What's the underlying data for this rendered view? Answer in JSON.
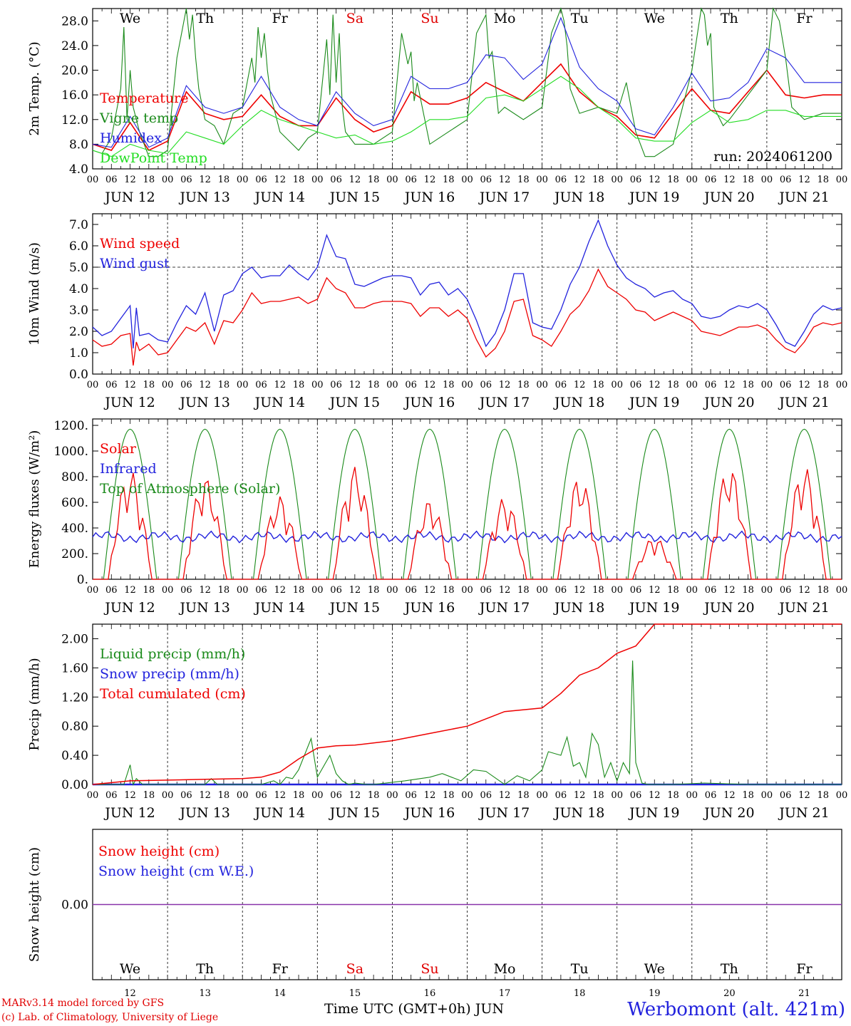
{
  "chart_data": [
    {
      "type": "line",
      "ylabel": "2m Temp. (°C)",
      "ylim": [
        4,
        30
      ],
      "yticks": [
        "4.0",
        "8.0",
        "12.0",
        "16.0",
        "20.0",
        "24.0",
        "28.0"
      ],
      "run_label": "run: 2024061200",
      "day_abbr": [
        "We",
        "Th",
        "Fr",
        "Sa",
        "Su",
        "Mo",
        "Tu",
        "We",
        "Th",
        "Fr"
      ],
      "weekend_color": "#e00000",
      "x_hours_label": [
        "00",
        "06",
        "12",
        "18"
      ],
      "x_days": [
        "JUN 12",
        "JUN 13",
        "JUN 14",
        "JUN 15",
        "JUN 16",
        "JUN 17",
        "JUN 18",
        "JUN 19",
        "JUN 20",
        "JUN 21"
      ],
      "series": [
        {
          "name": "Temperature",
          "color": "#ee0000",
          "x": [
            0,
            6,
            12,
            18,
            24,
            30,
            36,
            42,
            48,
            54,
            60,
            66,
            72,
            78,
            84,
            90,
            96,
            102,
            108,
            114,
            120,
            126,
            132,
            138,
            144,
            150,
            156,
            162,
            168,
            174,
            180,
            186,
            192,
            198,
            204,
            210,
            216,
            222,
            228,
            234,
            240
          ],
          "y": [
            8,
            7,
            11.5,
            7,
            8.5,
            16.5,
            13,
            12,
            12.5,
            16,
            12.5,
            11,
            11,
            15.5,
            12,
            10,
            11,
            16.5,
            14.5,
            14.5,
            15.5,
            18,
            16.5,
            15,
            18,
            21,
            16.5,
            14,
            12.5,
            9.5,
            9,
            13,
            17,
            13.5,
            13,
            16.5,
            20,
            16,
            15.5,
            16,
            16
          ]
        },
        {
          "name": "Vigne temp",
          "color": "#1a8a1a",
          "x": [
            0,
            3,
            6,
            9,
            10,
            11,
            12,
            13,
            14,
            15,
            18,
            21,
            24,
            27,
            30,
            31,
            32,
            33,
            34,
            36,
            39,
            42,
            45,
            48,
            51,
            52,
            53,
            54,
            55,
            56,
            57,
            60,
            66,
            69,
            72,
            75,
            76,
            77,
            78,
            79,
            80,
            81,
            84,
            90,
            96,
            99,
            101,
            102,
            103,
            104,
            108,
            114,
            120,
            123,
            126,
            127,
            128,
            129,
            130,
            132,
            138,
            144,
            147,
            150,
            151,
            152,
            153,
            156,
            162,
            168,
            171,
            174,
            177,
            180,
            186,
            192,
            195,
            196,
            197,
            198,
            199,
            202,
            204,
            210,
            216,
            218,
            220,
            222,
            224,
            228,
            234,
            240
          ],
          "y": [
            7,
            6.5,
            9,
            17,
            27,
            12,
            20,
            14,
            12,
            10,
            6,
            6,
            7,
            22,
            30,
            25,
            29,
            22,
            17,
            12,
            11,
            8,
            13,
            14,
            22,
            18,
            27,
            22,
            26,
            20,
            16,
            10,
            7,
            9,
            10,
            25,
            16,
            29,
            18,
            26,
            14,
            10,
            8,
            8,
            10,
            26,
            21,
            23,
            15,
            18,
            8,
            10,
            12,
            26,
            29,
            22,
            23,
            18,
            13,
            14,
            12,
            14,
            26,
            30,
            28,
            24,
            17,
            13,
            14,
            13,
            18,
            10,
            6,
            6,
            8,
            20,
            30,
            29,
            24,
            26,
            14,
            11,
            12,
            16,
            20,
            30,
            28,
            22,
            14,
            12,
            13,
            13
          ]
        },
        {
          "name": "Humidex",
          "color": "#2222dd",
          "x": [
            0,
            6,
            12,
            18,
            24,
            30,
            36,
            42,
            48,
            54,
            60,
            66,
            72,
            78,
            84,
            90,
            96,
            102,
            108,
            114,
            120,
            126,
            132,
            138,
            144,
            150,
            156,
            162,
            168,
            174,
            180,
            186,
            192,
            198,
            204,
            210,
            216,
            222,
            228,
            234,
            240
          ],
          "y": [
            8,
            7.5,
            12.5,
            7.5,
            9,
            17.5,
            14,
            13,
            14,
            19,
            14,
            12,
            11,
            16.5,
            13,
            11,
            12,
            19,
            17,
            17,
            18,
            22.5,
            22,
            18.5,
            21,
            28.5,
            20.5,
            17,
            15,
            10.5,
            9.5,
            14,
            19.5,
            15,
            15.5,
            18,
            23.5,
            22,
            18,
            18,
            18
          ]
        },
        {
          "name": "DewPoint Temp",
          "color": "#22dd22",
          "x": [
            0,
            6,
            12,
            18,
            24,
            30,
            36,
            42,
            48,
            54,
            60,
            66,
            72,
            78,
            84,
            90,
            96,
            102,
            108,
            114,
            120,
            126,
            132,
            138,
            144,
            150,
            156,
            162,
            168,
            174,
            180,
            186,
            192,
            198,
            204,
            210,
            216,
            222,
            228,
            234,
            240
          ],
          "y": [
            7,
            6,
            8,
            7,
            6.5,
            10,
            9,
            8,
            11,
            13.5,
            12,
            11,
            10,
            9,
            9.5,
            8,
            8.5,
            10,
            12,
            12,
            12.5,
            15.5,
            16,
            15,
            17,
            19,
            17,
            14,
            12,
            9,
            8.5,
            8.5,
            11.5,
            13.5,
            11.5,
            12,
            13.5,
            13.5,
            12.5,
            12.5,
            12.5
          ]
        }
      ]
    },
    {
      "type": "line",
      "ylabel": "10m Wind (m/s)",
      "ylim": [
        0,
        7.5
      ],
      "yticks": [
        "0.0",
        "1.0",
        "2.0",
        "3.0",
        "4.0",
        "5.0",
        "6.0",
        "7.0"
      ],
      "reference_line": 5.0,
      "series": [
        {
          "name": "Wind speed",
          "color": "#ee0000",
          "x": [
            0,
            3,
            6,
            9,
            12,
            13,
            14,
            15,
            18,
            21,
            24,
            27,
            30,
            33,
            36,
            39,
            42,
            45,
            48,
            51,
            54,
            57,
            60,
            63,
            66,
            69,
            72,
            75,
            78,
            81,
            84,
            87,
            90,
            93,
            96,
            99,
            102,
            105,
            108,
            111,
            114,
            117,
            120,
            123,
            126,
            129,
            132,
            135,
            138,
            141,
            144,
            147,
            150,
            153,
            156,
            159,
            162,
            165,
            168,
            171,
            174,
            177,
            180,
            183,
            186,
            189,
            192,
            195,
            198,
            201,
            204,
            207,
            210,
            213,
            216,
            219,
            222,
            225,
            228,
            231,
            234,
            237,
            240
          ],
          "y": [
            1.6,
            1.3,
            1.4,
            1.8,
            1.9,
            0.4,
            1.5,
            1.1,
            1.4,
            0.9,
            1.0,
            1.6,
            2.2,
            2.0,
            2.4,
            1.4,
            2.5,
            2.4,
            3.0,
            3.8,
            3.3,
            3.4,
            3.4,
            3.5,
            3.6,
            3.3,
            3.5,
            4.5,
            4.0,
            3.8,
            3.1,
            3.1,
            3.3,
            3.4,
            3.4,
            3.4,
            3.3,
            2.7,
            3.1,
            3.1,
            2.7,
            3.0,
            2.6,
            1.6,
            0.8,
            1.2,
            2.0,
            3.4,
            3.5,
            1.8,
            1.6,
            1.3,
            2.0,
            2.8,
            3.2,
            3.9,
            4.9,
            4.1,
            3.8,
            3.5,
            3.0,
            2.9,
            2.5,
            2.7,
            2.9,
            2.7,
            2.5,
            2.0,
            1.9,
            1.8,
            2.0,
            2.2,
            2.2,
            2.3,
            2.1,
            1.6,
            1.2,
            1.0,
            1.5,
            2.2,
            2.4,
            2.3,
            2.4
          ]
        },
        {
          "name": "Wind gust",
          "color": "#2222dd",
          "x": [
            0,
            3,
            6,
            9,
            12,
            13,
            14,
            15,
            18,
            21,
            24,
            27,
            30,
            33,
            36,
            39,
            42,
            45,
            48,
            51,
            54,
            57,
            60,
            63,
            66,
            69,
            72,
            75,
            78,
            81,
            84,
            87,
            90,
            93,
            96,
            99,
            102,
            105,
            108,
            111,
            114,
            117,
            120,
            123,
            126,
            129,
            132,
            135,
            138,
            141,
            144,
            147,
            150,
            153,
            156,
            159,
            162,
            165,
            168,
            171,
            174,
            177,
            180,
            183,
            186,
            189,
            192,
            195,
            198,
            201,
            204,
            207,
            210,
            213,
            216,
            219,
            222,
            225,
            228,
            231,
            234,
            237,
            240
          ],
          "y": [
            2.2,
            1.8,
            2.0,
            2.6,
            3.2,
            1.2,
            3.1,
            1.8,
            1.9,
            1.6,
            1.5,
            2.4,
            3.2,
            2.8,
            3.8,
            2.0,
            3.7,
            3.9,
            4.7,
            5.0,
            4.5,
            4.6,
            4.6,
            5.1,
            4.7,
            4.4,
            5.0,
            6.5,
            5.5,
            5.4,
            4.2,
            4.1,
            4.3,
            4.5,
            4.6,
            4.6,
            4.5,
            3.7,
            4.2,
            4.3,
            3.7,
            4.0,
            3.5,
            2.5,
            1.3,
            1.9,
            3.0,
            4.7,
            4.7,
            2.4,
            2.2,
            2.1,
            3.0,
            4.2,
            5.0,
            6.2,
            7.2,
            6.0,
            5.1,
            4.5,
            4.2,
            4.0,
            3.6,
            3.8,
            3.9,
            3.5,
            3.3,
            2.7,
            2.6,
            2.7,
            3.0,
            3.2,
            3.1,
            3.3,
            3.0,
            2.3,
            1.5,
            1.3,
            2.0,
            2.8,
            3.2,
            3.0,
            3.1
          ]
        }
      ]
    },
    {
      "type": "line",
      "ylabel": "Energy fluxes (W/m²)",
      "ylim": [
        0,
        1250
      ],
      "yticks": [
        "0.",
        "200.",
        "400.",
        "600.",
        "800.",
        "1000.",
        "1200."
      ],
      "series": [
        {
          "name": "Solar",
          "color": "#ee0000",
          "peaks": [
            850,
            800,
            650,
            880,
            620,
            640,
            800,
            330,
            880,
            880
          ]
        },
        {
          "name": "Infrared",
          "color": "#2222dd",
          "value": 330
        },
        {
          "name": "Top of Atmosphere (Solar)",
          "color": "#1a8a1a",
          "value": 1170
        }
      ]
    },
    {
      "type": "line",
      "ylabel": "Precip (mm/h)",
      "ylim": [
        0,
        2.2
      ],
      "yticks": [
        "0.00",
        "0.40",
        "0.80",
        "1.20",
        "1.60",
        "2.00"
      ],
      "series": [
        {
          "name": "Liquid precip (mm/h)",
          "color": "#1a8a1a",
          "x": [
            0,
            10,
            12,
            13,
            14,
            16,
            18,
            24,
            36,
            38,
            40,
            48,
            54,
            58,
            60,
            62,
            64,
            66,
            70,
            72,
            74,
            76,
            78,
            80,
            82,
            84,
            88,
            90,
            100,
            108,
            112,
            118,
            122,
            126,
            132,
            136,
            140,
            144,
            146,
            150,
            152,
            154,
            156,
            158,
            160,
            162,
            164,
            166,
            168,
            170,
            172,
            173,
            174,
            176,
            178,
            180,
            186,
            196,
            210,
            240
          ],
          "y": [
            0,
            0,
            0.27,
            0,
            0.08,
            0,
            0,
            0,
            0,
            0.08,
            0,
            0,
            0,
            0.05,
            0,
            0.1,
            0.08,
            0.2,
            0.63,
            0.1,
            0.25,
            0.4,
            0.15,
            0.05,
            0,
            0.02,
            0,
            0,
            0.05,
            0.1,
            0.15,
            0.05,
            0.2,
            0.18,
            0,
            0.12,
            0.05,
            0.2,
            0.45,
            0.4,
            0.65,
            0.25,
            0.3,
            0.1,
            0.7,
            0.55,
            0.1,
            0.3,
            0.05,
            0.3,
            0.15,
            1.7,
            0.3,
            0.02,
            0,
            0,
            0,
            0.02,
            0,
            0
          ]
        },
        {
          "name": "Snow precip (mm/h)",
          "color": "#2222dd",
          "value": 0
        },
        {
          "name": "Total cumulated (cm)",
          "color": "#ee0000",
          "x": [
            0,
            12,
            24,
            36,
            48,
            54,
            60,
            66,
            72,
            78,
            84,
            96,
            108,
            120,
            132,
            144,
            150,
            156,
            162,
            168,
            174,
            180,
            190,
            210,
            240
          ],
          "y": [
            0,
            0.05,
            0.06,
            0.07,
            0.08,
            0.1,
            0.17,
            0.35,
            0.5,
            0.53,
            0.54,
            0.6,
            0.7,
            0.8,
            1.0,
            1.05,
            1.25,
            1.5,
            1.6,
            1.8,
            1.9,
            2.2,
            2.2,
            2.2,
            2.2
          ]
        }
      ]
    },
    {
      "type": "line",
      "ylabel": "Snow height (cm)",
      "yticks": [
        "0.00"
      ],
      "series": [
        {
          "name": "Snow height (cm)",
          "color": "#ee0000",
          "value": 0
        },
        {
          "name": "Snow height (cm W.E.)",
          "color": "#2222dd",
          "value": 0
        }
      ],
      "day_abbr": [
        "We",
        "Th",
        "Fr",
        "Sa",
        "Su",
        "Mo",
        "Tu",
        "We",
        "Th",
        "Fr"
      ],
      "day_numbers": [
        "12",
        "13",
        "14",
        "15",
        "16",
        "17",
        "18",
        "19",
        "20",
        "21"
      ]
    }
  ],
  "footer": {
    "model": "MARv3.14 model forced by GFS",
    "credit": "(c) Lab. of Climatology, University of Liege",
    "x_axis_title": "Time UTC (GMT+0h) JUN",
    "station": "Werbomont (alt. 421m)"
  }
}
